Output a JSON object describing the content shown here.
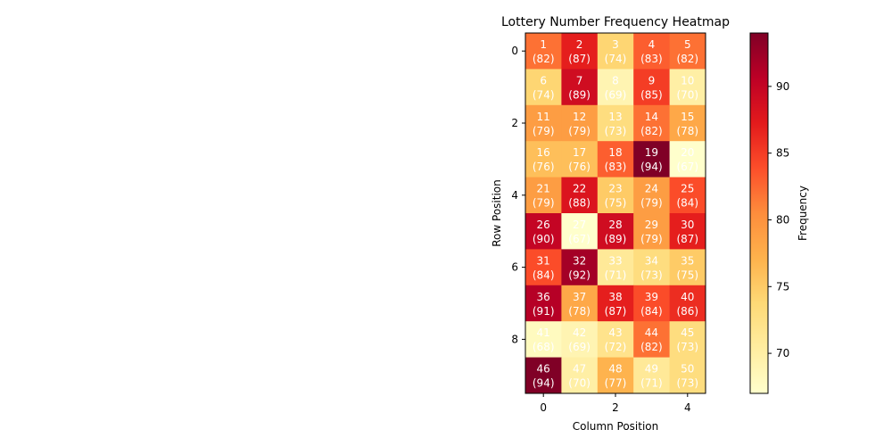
{
  "chart_data": {
    "type": "heatmap",
    "title": "Lottery Number Frequency Heatmap",
    "xlabel": "Column Position",
    "ylabel": "Row Position",
    "colorbar_label": "Frequency",
    "x_ticks": [
      0,
      2,
      4
    ],
    "y_ticks": [
      0,
      2,
      4,
      6,
      8
    ],
    "colorbar_ticks": [
      70,
      75,
      80,
      85,
      90
    ],
    "colorbar_range": [
      67,
      94
    ],
    "colormap": "YlOrRd",
    "rows": 10,
    "cols": 5,
    "numbers": [
      [
        1,
        2,
        3,
        4,
        5
      ],
      [
        6,
        7,
        8,
        9,
        10
      ],
      [
        11,
        12,
        13,
        14,
        15
      ],
      [
        16,
        17,
        18,
        19,
        20
      ],
      [
        21,
        22,
        23,
        24,
        25
      ],
      [
        26,
        27,
        28,
        29,
        30
      ],
      [
        31,
        32,
        33,
        34,
        35
      ],
      [
        36,
        37,
        38,
        39,
        40
      ],
      [
        41,
        42,
        43,
        44,
        45
      ],
      [
        46,
        47,
        48,
        49,
        50
      ]
    ],
    "values": [
      [
        82,
        87,
        74,
        83,
        82
      ],
      [
        74,
        89,
        69,
        85,
        70
      ],
      [
        79,
        79,
        73,
        82,
        78
      ],
      [
        76,
        76,
        83,
        94,
        67
      ],
      [
        79,
        88,
        75,
        79,
        84
      ],
      [
        90,
        67,
        89,
        79,
        87
      ],
      [
        84,
        92,
        71,
        73,
        75
      ],
      [
        91,
        78,
        87,
        84,
        86
      ],
      [
        68,
        69,
        72,
        82,
        73
      ],
      [
        94,
        70,
        77,
        71,
        73
      ]
    ]
  }
}
